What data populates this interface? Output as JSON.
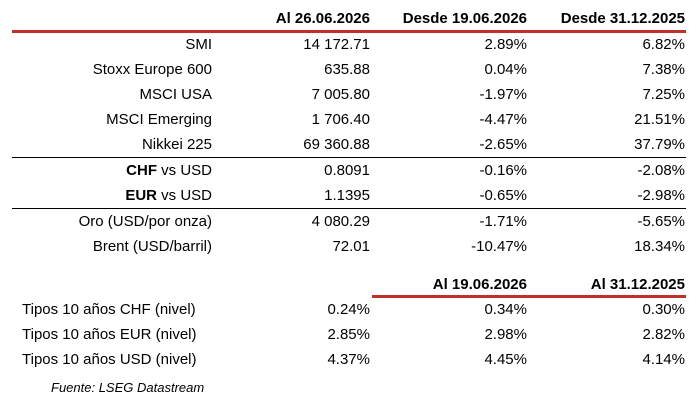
{
  "header": {
    "col1": "Al 26.06.2026",
    "col2": "Desde 19.06.2026",
    "col3": "Desde 31.12.2025"
  },
  "indices": [
    {
      "name": "SMI",
      "level": "14 172.71",
      "chg_week": "2.89%",
      "chg_ytd": "6.82%"
    },
    {
      "name": "Stoxx Europe 600",
      "level": "635.88",
      "chg_week": "0.04%",
      "chg_ytd": "7.38%"
    },
    {
      "name": "MSCI USA",
      "level": "7 005.80",
      "chg_week": "-1.97%",
      "chg_ytd": "7.25%"
    },
    {
      "name": "MSCI Emerging",
      "level": "1 706.40",
      "chg_week": "-4.47%",
      "chg_ytd": "21.51%"
    },
    {
      "name": "Nikkei 225",
      "level": "69 360.88",
      "chg_week": "-2.65%",
      "chg_ytd": "37.79%"
    }
  ],
  "currencies": [
    {
      "base": "CHF",
      "quote": " vs USD",
      "level": "0.8091",
      "chg_week": "-0.16%",
      "chg_ytd": "-2.08%"
    },
    {
      "base": "EUR",
      "quote": " vs USD",
      "level": "1.1395",
      "chg_week": "-0.65%",
      "chg_ytd": "-2.98%"
    }
  ],
  "commodities": [
    {
      "name": "Oro (USD/por onza)",
      "level": "4 080.29",
      "chg_week": "-1.71%",
      "chg_ytd": "-5.65%"
    },
    {
      "name": "Brent (USD/barril)",
      "level": "72.01",
      "chg_week": "-10.47%",
      "chg_ytd": "18.34%"
    }
  ],
  "rates_header": {
    "col2": "Al 19.06.2026",
    "col3": "Al 31.12.2025"
  },
  "rates": [
    {
      "name": "Tipos 10 años CHF (nivel)",
      "current": "0.24%",
      "prev_week": "0.34%",
      "prev_ytd": "0.30%"
    },
    {
      "name": "Tipos 10 años EUR (nivel)",
      "current": "2.85%",
      "prev_week": "2.98%",
      "prev_ytd": "2.82%"
    },
    {
      "name": "Tipos 10 años USD (nivel)",
      "current": "4.37%",
      "prev_week": "4.45%",
      "prev_ytd": "4.14%"
    }
  ],
  "source": "Fuente: LSEG Datastream",
  "colors": {
    "accent_rule": "#c0312c",
    "separator": "#000000",
    "text": "#000000"
  }
}
